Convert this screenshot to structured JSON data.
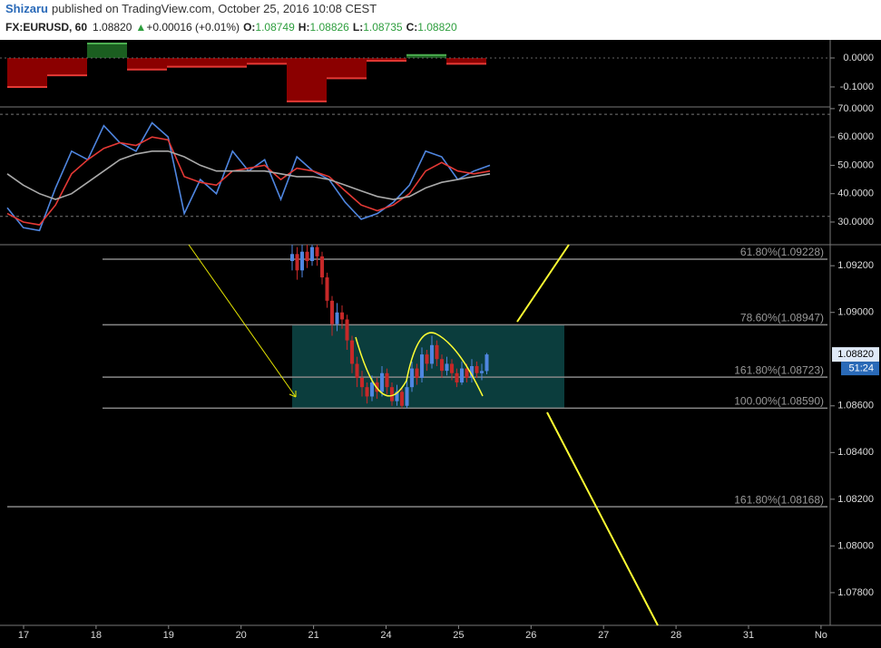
{
  "header": {
    "author": "Shizaru",
    "published": "published on TradingView.com, October 25, 2016 10:08 CEST",
    "symbol": "FX:EURUSD, 60",
    "last": "1.08820",
    "change": "+0.00016 (+0.01%)",
    "ohlc": [
      {
        "label": "O:",
        "value": "1.08749"
      },
      {
        "label": "H:",
        "value": "1.08826"
      },
      {
        "label": "L:",
        "value": "1.08735"
      },
      {
        "label": "C:",
        "value": "1.08820"
      }
    ]
  },
  "chart_data": [
    {
      "type": "step-area",
      "values": [
        -0.1,
        -0.06,
        0.05,
        -0.04,
        -0.03,
        -0.03,
        -0.02,
        -0.15,
        -0.07,
        -0.01,
        0.01,
        -0.02
      ],
      "color_up": "#1b5e20",
      "color_down": "#8b0000",
      "line_up": "#4caf50",
      "line_down": "#e53935",
      "ylim": [
        -0.169,
        0.0625
      ],
      "yticks": [
        {
          "value": 0,
          "label": "0.0000"
        },
        {
          "value": -0.1,
          "label": "-0.1000"
        }
      ]
    },
    {
      "type": "line",
      "ylim": [
        22,
        70.6
      ],
      "yticks": [
        {
          "value": 70,
          "label": "70.0000"
        },
        {
          "value": 60,
          "label": "60.0000"
        },
        {
          "value": 50,
          "label": "50.0000"
        },
        {
          "value": 40,
          "label": "40.0000"
        },
        {
          "value": 30,
          "label": "30.0000"
        }
      ],
      "bands": [
        68,
        32
      ],
      "series": [
        {
          "color": "#4f86e0",
          "values": [
            35,
            28,
            27,
            42,
            55,
            52,
            64,
            58,
            55,
            65,
            60,
            33,
            45,
            40,
            55,
            48,
            52,
            38,
            53,
            48,
            45,
            37,
            31,
            33,
            37,
            43,
            55,
            53,
            45,
            48,
            50
          ]
        },
        {
          "color": "#e53935",
          "values": [
            33,
            30,
            29,
            36,
            47,
            52,
            56,
            58,
            57,
            60,
            59,
            46,
            44,
            43,
            48,
            49,
            50,
            45,
            49,
            48,
            46,
            41,
            36,
            34,
            36,
            40,
            48,
            51,
            48,
            47,
            48
          ]
        },
        {
          "color": "#aaaaaa",
          "values": [
            47,
            43,
            40,
            38,
            40,
            44,
            48,
            52,
            54,
            55,
            55,
            53,
            50,
            48,
            48,
            48,
            48,
            47,
            46,
            46,
            45,
            43,
            41,
            39,
            38,
            39,
            42,
            44,
            45,
            46,
            47
          ]
        }
      ]
    },
    {
      "type": "candlestick",
      "categories": [
        "17",
        "18",
        "19",
        "20",
        "21",
        "24",
        "25",
        "26",
        "27",
        "28",
        "31",
        "No"
      ],
      "ylim": [
        1.0766,
        1.0929
      ],
      "yticks": [
        {
          "value": 1.092,
          "label": "1.09200"
        },
        {
          "value": 1.09,
          "label": "1.09000"
        },
        {
          "value": 1.086,
          "label": "1.08600"
        },
        {
          "value": 1.084,
          "label": "1.08400"
        },
        {
          "value": 1.082,
          "label": "1.08200"
        },
        {
          "value": 1.08,
          "label": "1.08000"
        },
        {
          "value": 1.078,
          "label": "1.07800"
        }
      ],
      "color_up": "#4f86e0",
      "color_down": "#c62828",
      "open": [
        1.0922,
        1.0925,
        1.0918,
        1.0926,
        1.0922,
        1.0928,
        1.0924,
        1.0915,
        1.0905,
        1.0895,
        1.09,
        1.0897,
        1.0888,
        1.0878,
        1.0872,
        1.0868,
        1.0864,
        1.087,
        1.0866,
        1.0874,
        1.0868,
        1.0862,
        1.0866,
        1.086,
        1.0868,
        1.0876,
        1.0872,
        1.0882,
        1.0878,
        1.0886,
        1.088,
        1.0875,
        1.0878,
        1.0874,
        1.087,
        1.0876,
        1.0872,
        1.0877,
        1.0874,
        1.08749
      ],
      "high": [
        1.0929,
        1.0928,
        1.0929,
        1.0929,
        1.0929,
        1.0929,
        1.0926,
        1.0917,
        1.0907,
        1.0904,
        1.0903,
        1.0899,
        1.089,
        1.0881,
        1.0875,
        1.087,
        1.0873,
        1.0872,
        1.0877,
        1.0876,
        1.087,
        1.0869,
        1.0868,
        1.0871,
        1.0879,
        1.0878,
        1.0885,
        1.0884,
        1.089,
        1.0888,
        1.0882,
        1.0881,
        1.088,
        1.0876,
        1.0879,
        1.0878,
        1.088,
        1.0879,
        1.0878,
        1.08826
      ],
      "low": [
        1.0918,
        1.0914,
        1.0915,
        1.0919,
        1.092,
        1.092,
        1.0912,
        1.0902,
        1.089,
        1.0892,
        1.0893,
        1.0884,
        1.0874,
        1.0868,
        1.0864,
        1.0861,
        1.0862,
        1.0863,
        1.0864,
        1.0865,
        1.086,
        1.086,
        1.0859,
        1.0859,
        1.0866,
        1.0869,
        1.087,
        1.0875,
        1.0876,
        1.0877,
        1.0872,
        1.0873,
        1.0871,
        1.0868,
        1.0869,
        1.087,
        1.087,
        1.0872,
        1.0871,
        1.08735
      ],
      "close": [
        1.0925,
        1.0918,
        1.0926,
        1.0922,
        1.0928,
        1.0924,
        1.0915,
        1.0905,
        1.0895,
        1.09,
        1.0897,
        1.0888,
        1.0878,
        1.0872,
        1.0868,
        1.0864,
        1.087,
        1.0866,
        1.0874,
        1.0868,
        1.0862,
        1.0866,
        1.086,
        1.0868,
        1.0876,
        1.0872,
        1.0882,
        1.0878,
        1.0886,
        1.088,
        1.0875,
        1.0878,
        1.0874,
        1.087,
        1.0876,
        1.0872,
        1.0877,
        1.0874,
        1.08749,
        1.0882
      ],
      "fib": [
        {
          "value": 1.09228,
          "label": "61.80%(1.09228)"
        },
        {
          "value": 1.08947,
          "label": "78.60%(1.08947)"
        },
        {
          "value": 1.08723,
          "label": "161.80%(1.08723)"
        },
        {
          "value": 1.0859,
          "label": "100.00%(1.08590)"
        },
        {
          "value": 1.08168,
          "label": "161.80%(1.08168)"
        }
      ],
      "price_label": "1.08820",
      "countdown": "51:24"
    }
  ]
}
